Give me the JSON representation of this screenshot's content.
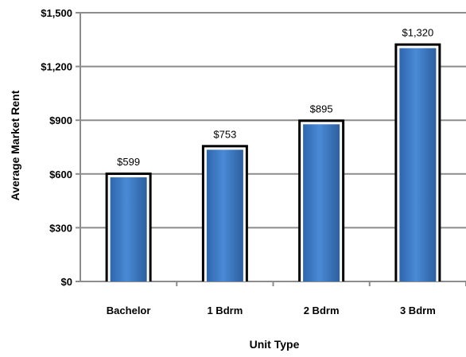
{
  "chart_data": {
    "type": "bar",
    "title": "",
    "xlabel": "Unit Type",
    "ylabel": "Average Market Rent",
    "categories": [
      "Bachelor",
      "1 Bdrm",
      "2 Bdrm",
      "3 Bdrm"
    ],
    "values": [
      599,
      753,
      895,
      1320
    ],
    "data_labels": [
      "$599",
      "$753",
      "$895",
      "$1,320"
    ],
    "ylim": [
      0,
      1500
    ],
    "yticks": [
      0,
      300,
      600,
      900,
      1200,
      1500
    ],
    "ytick_labels": [
      "$0",
      "$300",
      "$600",
      "$900",
      "$1,200",
      "$1,500"
    ],
    "grid": true,
    "legend": "none",
    "colors": {
      "bar_fill": "#3a78c4",
      "bar_highlight": "#6aa2e0",
      "bar_outline": "#000000",
      "grid": "#8c8c8c"
    }
  }
}
